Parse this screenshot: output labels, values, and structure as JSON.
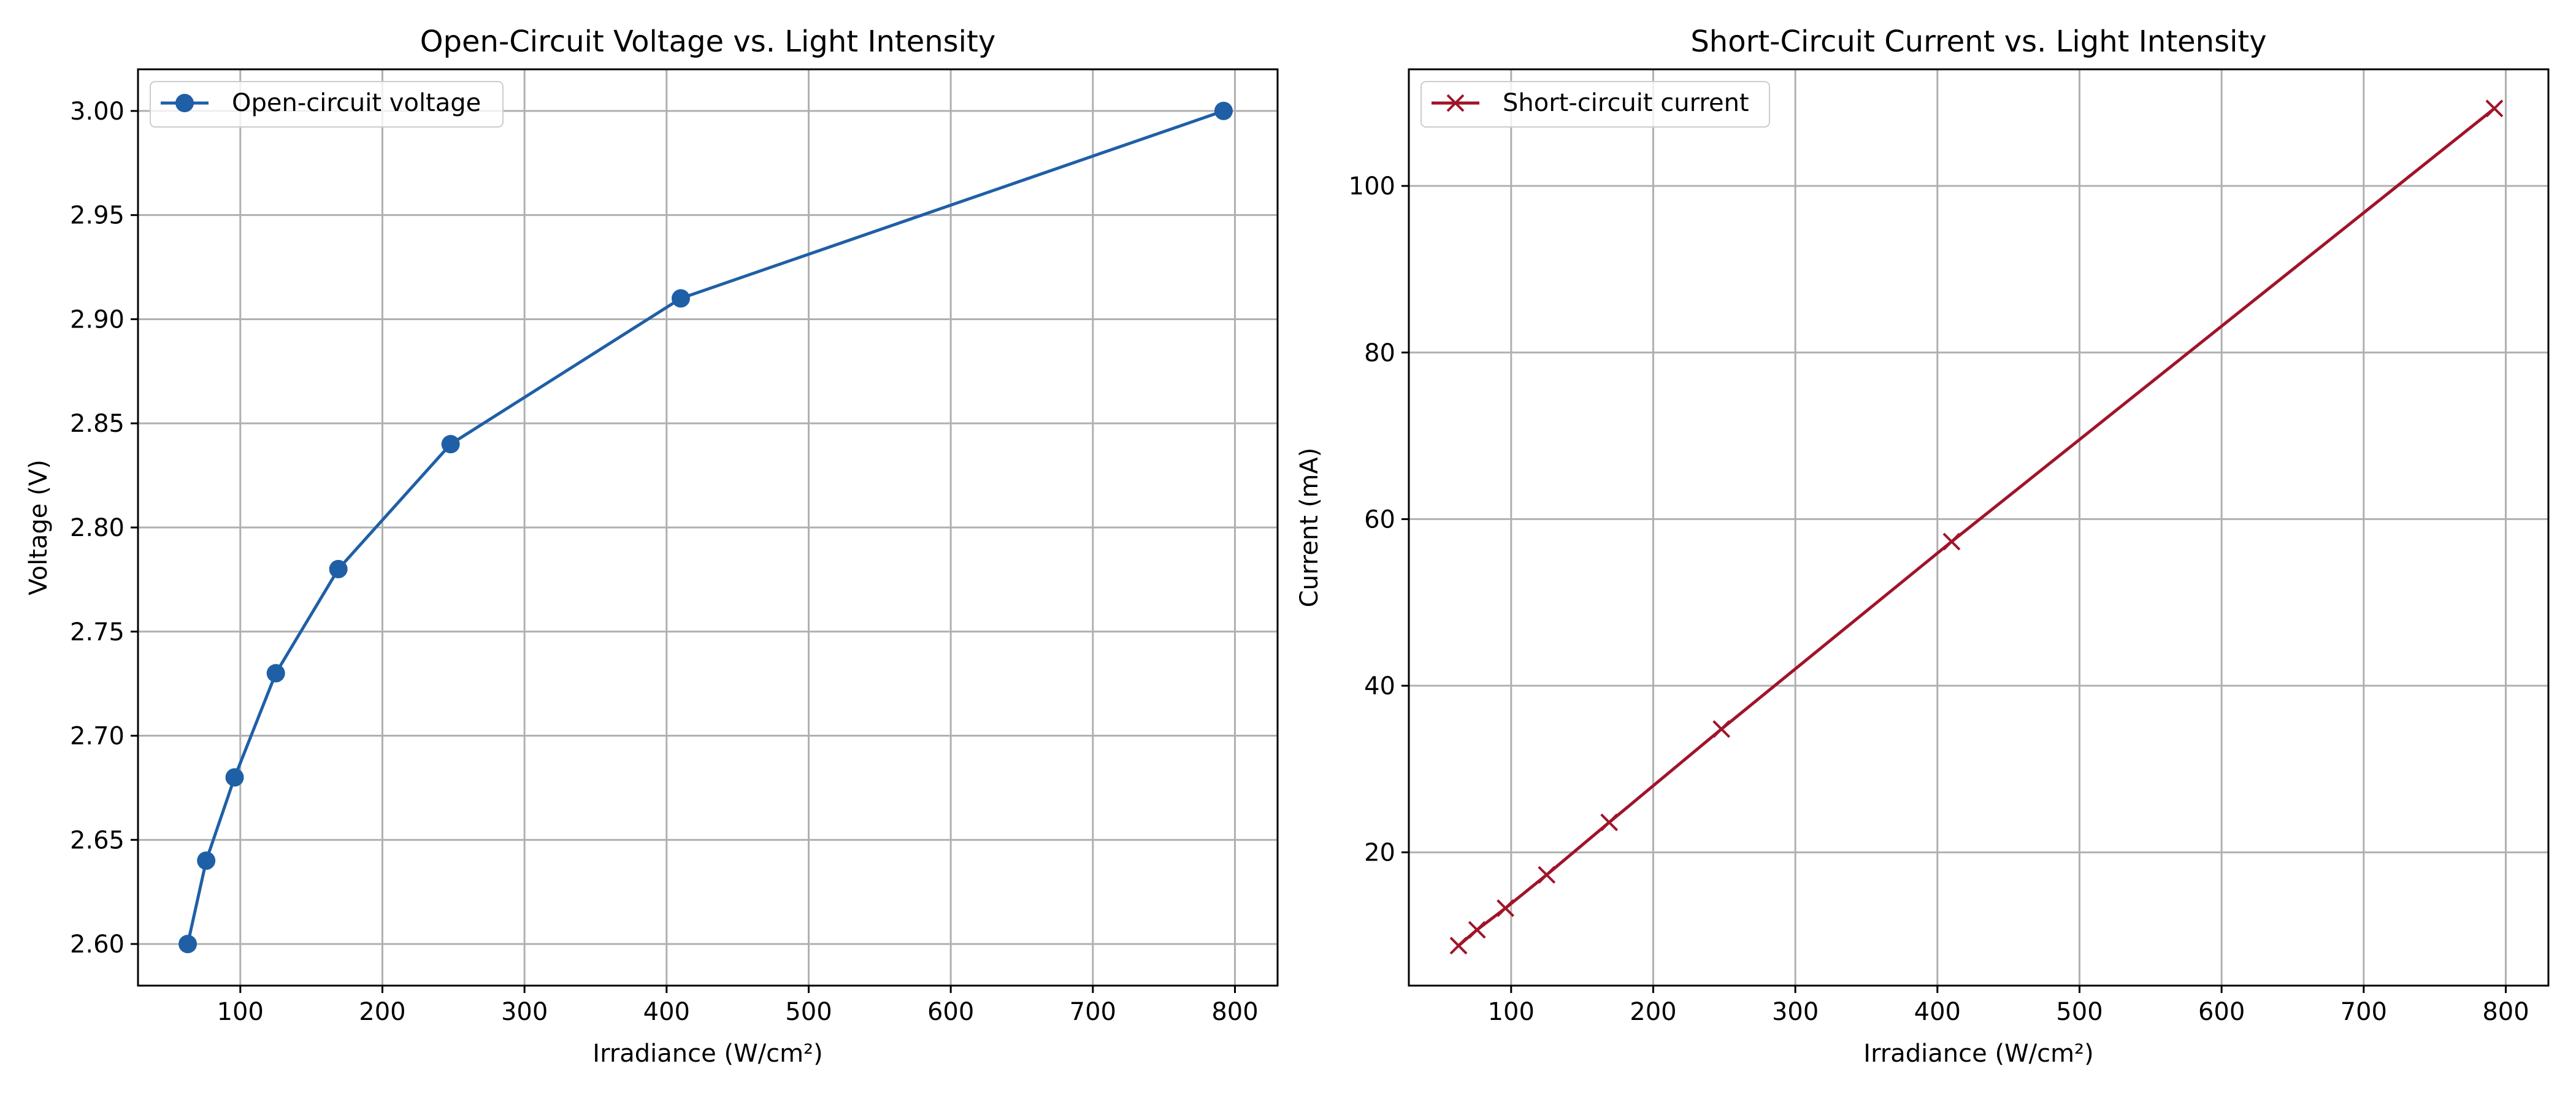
{
  "chart_data": [
    {
      "type": "line",
      "title": "Open-Circuit Voltage vs. Light Intensity",
      "xlabel": "Irradiance (W/cm²)",
      "ylabel": "Voltage (V)",
      "xlim": [
        28,
        830
      ],
      "ylim": [
        2.58,
        3.02
      ],
      "xticks": [
        100,
        200,
        300,
        400,
        500,
        600,
        700,
        800
      ],
      "yticks": [
        2.6,
        2.65,
        2.7,
        2.75,
        2.8,
        2.85,
        2.9,
        2.95,
        3.0
      ],
      "ytick_decimals": 2,
      "grid": true,
      "legend_position": "top-left",
      "series": [
        {
          "name": "Open-circuit voltage",
          "color": "#1f5fa6",
          "marker": "circle",
          "x": [
            63,
            76,
            96,
            125,
            169,
            248,
            410,
            792
          ],
          "y": [
            2.6,
            2.64,
            2.68,
            2.73,
            2.78,
            2.84,
            2.91,
            3.0
          ]
        }
      ]
    },
    {
      "type": "line",
      "title": "Short-Circuit Current vs. Light Intensity",
      "xlabel": "Irradiance (W/cm²)",
      "ylabel": "Current (mA)",
      "xlim": [
        28,
        830
      ],
      "ylim": [
        4,
        114
      ],
      "xticks": [
        100,
        200,
        300,
        400,
        500,
        600,
        700,
        800
      ],
      "yticks": [
        20,
        40,
        60,
        80,
        100
      ],
      "ytick_decimals": 0,
      "grid": true,
      "legend_position": "top-left",
      "series": [
        {
          "name": "Short-circuit current",
          "color": "#a0142a",
          "marker": "x",
          "x": [
            63,
            76,
            96,
            125,
            169,
            248,
            410,
            792
          ],
          "y": [
            8.8,
            10.7,
            13.3,
            17.3,
            23.6,
            34.8,
            57.3,
            109.3
          ]
        }
      ]
    }
  ]
}
